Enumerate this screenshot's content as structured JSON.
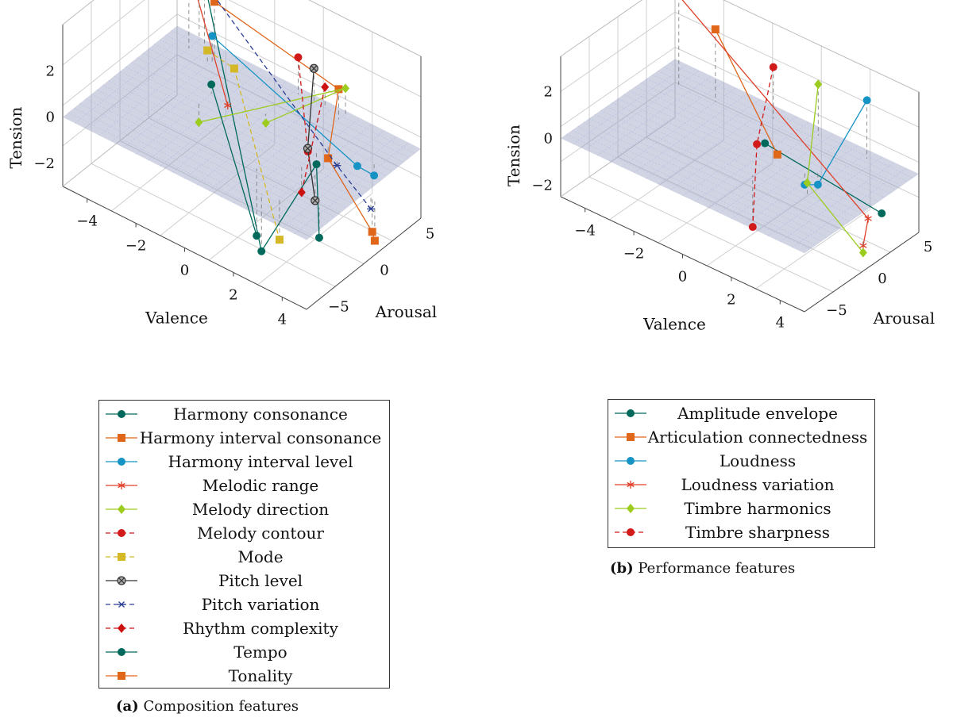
{
  "chart_data": [
    {
      "type": "scatter3d",
      "caption_tag": "(a)",
      "caption_text": "Composition features",
      "xlabel": "Valence",
      "ylabel": "Arousal",
      "zlabel": "Tension",
      "xlim": [
        -5,
        5
      ],
      "ylim": [
        -5,
        5
      ],
      "zlim": [
        -3,
        4
      ],
      "xticks": [
        "−4",
        "−2",
        "0",
        "2",
        "4"
      ],
      "yticks": [
        "−5",
        "0",
        "5"
      ],
      "zticks": [
        "−2",
        "0",
        "2"
      ],
      "plane": "Tension = 0",
      "series": [
        {
          "name": "Harmony consonance",
          "color": "#00695c",
          "marker": "circle",
          "dash": false,
          "points": [
            [
              -3.5,
              4.2,
              3.0
            ],
            [
              2.4,
              -3.4,
              -2.5
            ],
            [
              2.5,
              1.2,
              -0.5
            ],
            [
              4.3,
              -2.4,
              -1.3
            ]
          ]
        },
        {
          "name": "Harmony interval consonance",
          "color": "#e0661a",
          "marker": "square",
          "dash": false,
          "points": [
            [
              -3.0,
              4.0,
              2.5
            ],
            [
              2.0,
              4.2,
              1.3
            ],
            [
              2.6,
              2.0,
              -0.5
            ],
            [
              5.3,
              0.1,
              -1.5
            ],
            [
              5.5,
              -0.1,
              -1.7
            ]
          ]
        },
        {
          "name": "Harmony interval level",
          "color": "#1593c4",
          "marker": "circle",
          "dash": false,
          "points": [
            [
              -3.0,
              3.8,
              1.1
            ],
            [
              3.8,
              2.0,
              -0.2
            ],
            [
              4.3,
              2.4,
              -0.5
            ]
          ]
        },
        {
          "name": "Melodic range",
          "color": "#e0402a",
          "marker": "asterisk",
          "dash": false,
          "points": [
            [
              -4.0,
              3.9,
              3.5
            ],
            [
              -1.0,
              0.9,
              0.3
            ]
          ]
        },
        {
          "name": "Melody direction",
          "color": "#9ccc1e",
          "marker": "diamond",
          "dash": false,
          "points": [
            [
              -2.0,
              0.5,
              -0.8
            ],
            [
              2.0,
              4.8,
              1.1
            ],
            [
              0.0,
              2.1,
              -0.4
            ]
          ]
        },
        {
          "name": "Melody contour",
          "color": "#d11a1a",
          "marker": "circle",
          "dash": true,
          "points": [
            [
              0.2,
              4.5,
              1.6
            ],
            [
              2.1,
              1.3,
              -0.2
            ]
          ]
        },
        {
          "name": "Mode",
          "color": "#d4b826",
          "marker": "square",
          "dash": true,
          "points": [
            [
              -3.1,
              3.6,
              0.5
            ],
            [
              -2.0,
              3.6,
              0.3
            ],
            [
              3.0,
              -3.1,
              -1.8
            ]
          ]
        },
        {
          "name": "Pitch level",
          "color": "#333333",
          "marker": "circled-x",
          "dash": false,
          "points": [
            [
              0.8,
              4.6,
              1.4
            ],
            [
              2.0,
              1.5,
              -0.2
            ],
            [
              3.1,
              -0.2,
              -1.2
            ]
          ]
        },
        {
          "name": "Pitch variation",
          "color": "#2a3d94",
          "marker": "star",
          "dash": true,
          "points": [
            [
              -4.0,
              4.8,
              2.8
            ],
            [
              3.2,
              1.5,
              -0.3
            ],
            [
              5.2,
              0.2,
              -0.6
            ]
          ]
        },
        {
          "name": "Rhythm complexity",
          "color": "#cc1111",
          "marker": "diamond",
          "dash": true,
          "points": [
            [
              1.3,
              4.5,
              0.9
            ],
            [
              2.5,
              -0.1,
              -1.2
            ]
          ]
        },
        {
          "name": "Tempo",
          "color": "#00695c",
          "marker": "circle",
          "dash": false,
          "points": [
            [
              -2.0,
              1.6,
              0.4
            ],
            [
              1.5,
              -1.9,
              -2.9
            ]
          ]
        },
        {
          "name": "Tonality",
          "color": "#e0661a",
          "marker": "square",
          "dash": false,
          "points": []
        }
      ]
    },
    {
      "type": "scatter3d",
      "caption_tag": "(b)",
      "caption_text": "Performance features",
      "xlabel": "Valence",
      "ylabel": "Arousal",
      "zlabel": "Tension",
      "xlim": [
        -5,
        5
      ],
      "ylim": [
        -5,
        5
      ],
      "zlim": [
        -2.5,
        3.5
      ],
      "xticks": [
        "−4",
        "−2",
        "0",
        "2",
        "4"
      ],
      "yticks": [
        "−5",
        "0",
        "5"
      ],
      "zticks": [
        "−2",
        "0",
        "2"
      ],
      "plane": "Tension = 0",
      "series": [
        {
          "name": "Amplitude envelope",
          "color": "#00695c",
          "marker": "circle",
          "dash": false,
          "points": [
            [
              0.0,
              2.2,
              -0.2
            ],
            [
              5.4,
              0.9,
              -0.1
            ]
          ]
        },
        {
          "name": "Articulation connectedness",
          "color": "#e0661a",
          "marker": "square",
          "dash": false,
          "points": [
            [
              -2.5,
              3.2,
              3.1
            ],
            [
              0.7,
              1.8,
              -0.2
            ]
          ]
        },
        {
          "name": "Loudness",
          "color": "#1593c4",
          "marker": "circle",
          "dash": false,
          "points": [
            [
              3.2,
              4.3,
              2.5
            ],
            [
              2.5,
              1.5,
              -0.5
            ],
            [
              2.1,
              1.2,
              -0.6
            ]
          ]
        },
        {
          "name": "Loudness variation",
          "color": "#e0402a",
          "marker": "asterisk",
          "dash": false,
          "points": [
            [
              -4.0,
              3.2,
              3.8
            ],
            [
              5.5,
              -0.5,
              0.2
            ],
            [
              6.0,
              -2.0,
              -0.2
            ]
          ]
        },
        {
          "name": "Timbre harmonics",
          "color": "#9ccc1e",
          "marker": "diamond",
          "dash": false,
          "points": [
            [
              1.2,
              4.3,
              2.2
            ],
            [
              3.0,
              -0.5,
              0.5
            ],
            [
              6.0,
              -2.0,
              -0.5
            ]
          ]
        },
        {
          "name": "Timbre sharpness",
          "color": "#d11a1a",
          "marker": "circle",
          "dash": true,
          "points": [
            [
              -0.5,
              4.0,
              2.2
            ],
            [
              0.0,
              1.5,
              0.0
            ],
            [
              1.0,
              -1.0,
              -2.2
            ]
          ]
        }
      ]
    }
  ]
}
